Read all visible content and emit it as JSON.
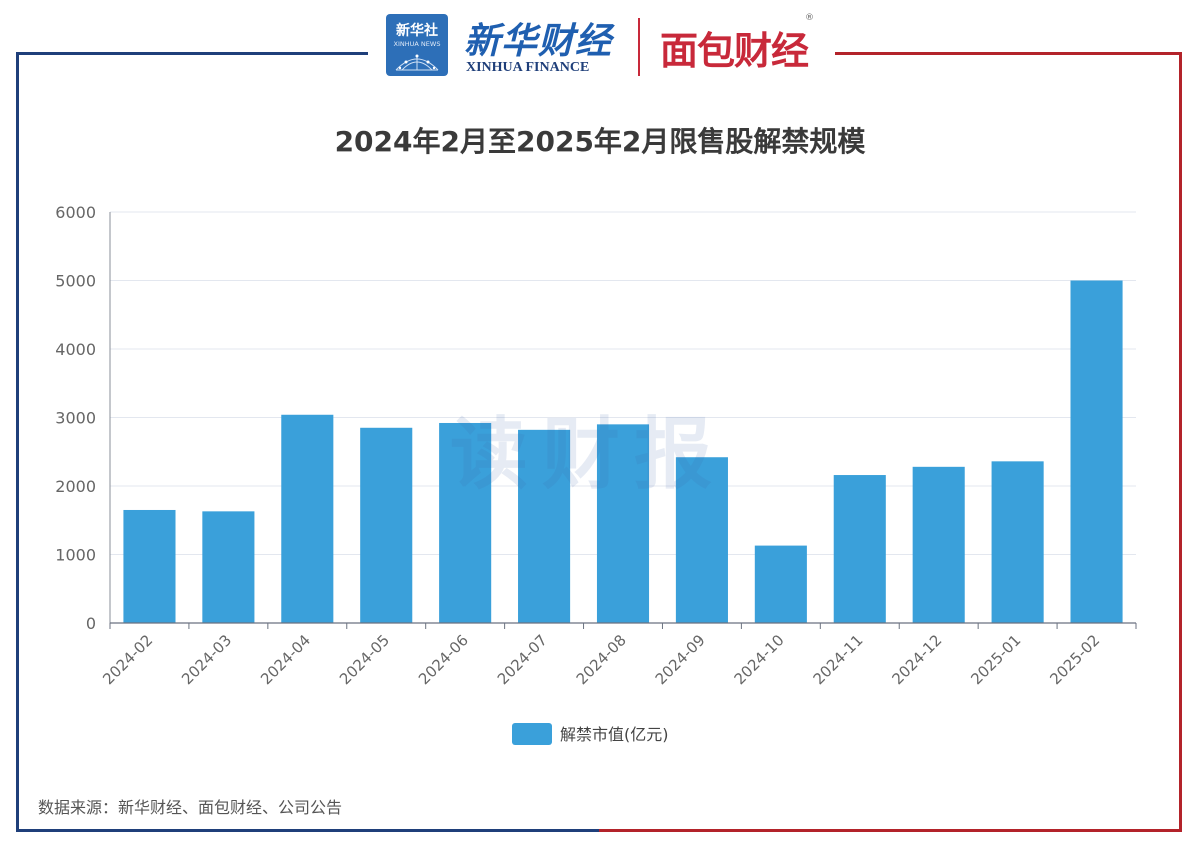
{
  "header": {
    "xinhua_news_logo": "新华社",
    "xinhua_news_en": "XINHUA NEWS",
    "xinhua_finance_cn": "新华财经",
    "xinhua_finance_en": "XINHUA FINANCE",
    "mianbao_logo": "面包财经",
    "registered_mark": "®"
  },
  "watermark": "读财报",
  "source_note": "数据来源：新华财经、面包财经、公司公告",
  "colors": {
    "bar": "#3aa0da",
    "frame_left": "#1f3f7a",
    "frame_right": "#b3232a",
    "grid": "#e3e7ef",
    "axis_text": "#666666"
  },
  "chart_data": {
    "type": "bar",
    "title": "2024年2月至2025年2月限售股解禁规模",
    "categories": [
      "2024-02",
      "2024-03",
      "2024-04",
      "2024-05",
      "2024-06",
      "2024-07",
      "2024-08",
      "2024-09",
      "2024-10",
      "2024-11",
      "2024-12",
      "2025-01",
      "2025-02"
    ],
    "series": [
      {
        "name": "解禁市值(亿元)",
        "values": [
          1650,
          1630,
          3040,
          2850,
          2920,
          2820,
          2900,
          2420,
          1130,
          2160,
          2280,
          2360,
          5000
        ]
      }
    ],
    "ylim": [
      0,
      6000
    ],
    "yticks": [
      0,
      1000,
      2000,
      3000,
      4000,
      5000,
      6000
    ],
    "xlabel": "",
    "ylabel": "",
    "grid": true,
    "legend_position": "bottom-center"
  }
}
